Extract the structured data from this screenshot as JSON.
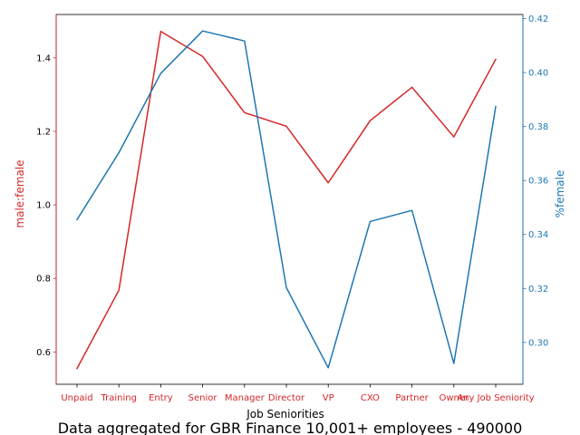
{
  "chart_data": {
    "type": "line",
    "categories": [
      "Unpaid",
      "Training",
      "Entry",
      "Senior",
      "Manager",
      "Director",
      "VP",
      "CXO",
      "Partner",
      "Owner",
      "Any Job Seniority"
    ],
    "series": [
      {
        "name": "male:female",
        "axis": "left",
        "color": "#d62728",
        "values": [
          0.555,
          0.768,
          1.472,
          1.404,
          1.251,
          1.214,
          1.06,
          1.229,
          1.32,
          1.185,
          1.396
        ]
      },
      {
        "name": "%female",
        "axis": "right",
        "color": "#1f77b4",
        "values": [
          0.3455,
          0.3703,
          0.3997,
          0.4154,
          0.4117,
          0.3203,
          0.2906,
          0.3448,
          0.3489,
          0.2922,
          0.3874
        ]
      }
    ],
    "xlabel": "Job Seniorities",
    "ylabel_left": "male:female",
    "ylabel_right": "%female",
    "ylim_left": [
      0.512,
      1.518
    ],
    "ylim_right": [
      0.2845,
      0.4215
    ],
    "yticks_left": [
      0.6,
      0.8,
      1.0,
      1.2,
      1.4
    ],
    "yticks_right": [
      0.3,
      0.32,
      0.34,
      0.36,
      0.38,
      0.4,
      0.42
    ],
    "grid": false,
    "title": "Data aggregated for GBR Finance 10,001+ employees - 490000"
  }
}
